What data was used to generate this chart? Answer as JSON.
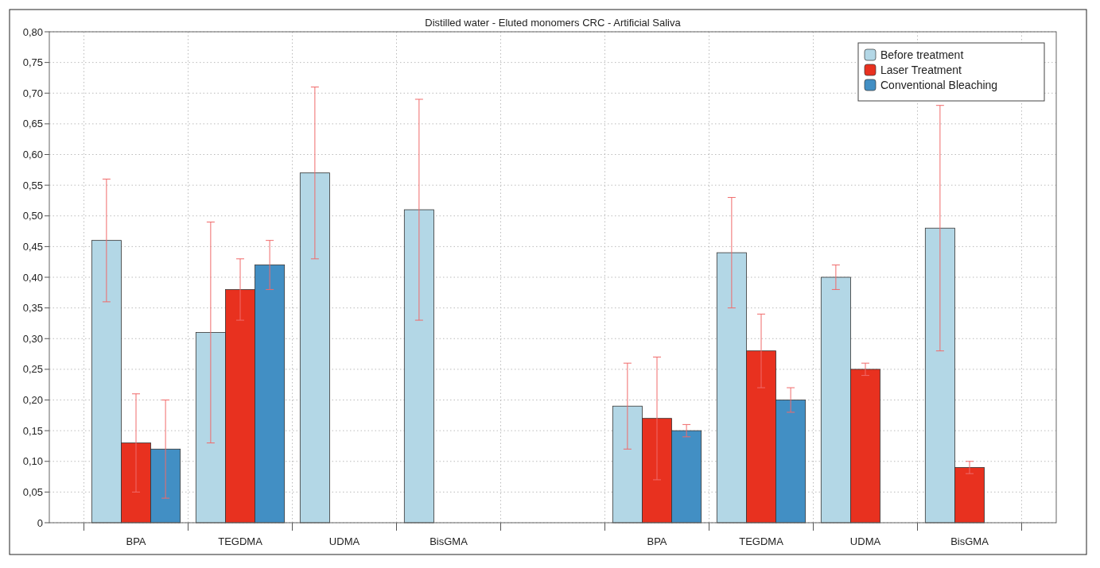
{
  "chart_data": {
    "type": "bar",
    "title": "Distilled water - Eluted monomers CRC - Artificial Saliva",
    "categories": [
      "BPA",
      "TEGDMA",
      "UDMA",
      "BisGMA",
      null,
      "BPA",
      "TEGDMA",
      "UDMA",
      "BisGMA"
    ],
    "series": [
      {
        "name": "Before treatment",
        "color": "#b3d7e6",
        "values": [
          0.46,
          0.31,
          0.57,
          0.51,
          null,
          0.19,
          0.44,
          0.4,
          0.48
        ],
        "errors": [
          [
            0.36,
            0.56
          ],
          [
            0.13,
            0.49
          ],
          [
            0.43,
            0.71
          ],
          [
            0.33,
            0.69
          ],
          null,
          [
            0.12,
            0.26
          ],
          [
            0.35,
            0.53
          ],
          [
            0.38,
            0.42
          ],
          [
            0.28,
            0.68
          ]
        ]
      },
      {
        "name": "Laser Treatment",
        "color": "#e8311f",
        "values": [
          0.13,
          0.38,
          null,
          null,
          null,
          0.17,
          0.28,
          0.25,
          0.09
        ],
        "errors": [
          [
            0.05,
            0.21
          ],
          [
            0.33,
            0.43
          ],
          null,
          null,
          null,
          [
            0.07,
            0.27
          ],
          [
            0.22,
            0.34
          ],
          [
            0.24,
            0.26
          ],
          [
            0.08,
            0.1
          ]
        ]
      },
      {
        "name": "Conventional Bleaching",
        "color": "#428fc4",
        "values": [
          0.12,
          0.42,
          null,
          null,
          null,
          0.15,
          0.2,
          null,
          null
        ],
        "errors": [
          [
            0.04,
            0.2
          ],
          [
            0.38,
            0.46
          ],
          null,
          null,
          null,
          [
            0.14,
            0.16
          ],
          [
            0.18,
            0.22
          ],
          null,
          null
        ]
      }
    ],
    "ylim": [
      0,
      0.8
    ],
    "yticks": [
      0,
      {
        "value": 0.05,
        "label": "0,05"
      },
      {
        "value": 0.1,
        "label": "0,10"
      },
      {
        "value": 0.15,
        "label": "0,15"
      },
      {
        "value": 0.2,
        "label": "0,20"
      },
      {
        "value": 0.25,
        "label": "0,25"
      },
      {
        "value": 0.3,
        "label": "0,30"
      },
      {
        "value": 0.35,
        "label": "0,35"
      },
      {
        "value": 0.4,
        "label": "0,40"
      },
      {
        "value": 0.45,
        "label": "0,45"
      },
      {
        "value": 0.5,
        "label": "0,50"
      },
      {
        "value": 0.55,
        "label": "0,55"
      },
      {
        "value": 0.6,
        "label": "0,60"
      },
      {
        "value": 0.65,
        "label": "0,65"
      },
      {
        "value": 0.7,
        "label": "0,70"
      },
      {
        "value": 0.75,
        "label": "0,75"
      },
      {
        "value": 0.8,
        "label": "0,80"
      }
    ],
    "grid": true,
    "legend": "top right"
  }
}
